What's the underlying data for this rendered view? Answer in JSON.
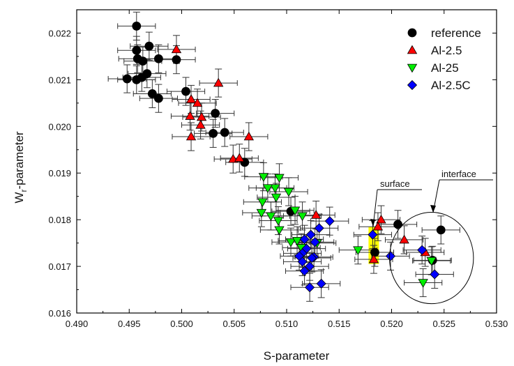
{
  "chart_data": {
    "type": "scatter",
    "xlabel": "S-parameter",
    "ylabel_main": "W",
    "ylabel_sub": "r",
    "ylabel_rest": "-parameter",
    "xlim": [
      0.49,
      0.53
    ],
    "ylim": [
      0.016,
      0.0225
    ],
    "xticks": [
      0.49,
      0.495,
      0.5,
      0.505,
      0.51,
      0.515,
      0.52,
      0.525,
      0.53
    ],
    "xtick_labels": [
      "0.490",
      "0.495",
      "0.500",
      "0.505",
      "0.510",
      "0.515",
      "0.520",
      "0.525",
      "0.530"
    ],
    "yticks": [
      0.016,
      0.017,
      0.018,
      0.019,
      0.02,
      0.021,
      0.022
    ],
    "ytick_labels": [
      "0.016",
      "0.017",
      "0.018",
      "0.019",
      "0.020",
      "0.021",
      "0.022"
    ],
    "x_error": 0.0018,
    "y_error": 0.0003,
    "annotations": {
      "surface": "surface",
      "interface": "interface"
    },
    "highlight_region": {
      "x": [
        0.5178,
        0.5188
      ],
      "y": [
        0.01705,
        0.01785
      ],
      "color": "#ffff00"
    },
    "interface_ellipse": {
      "cx": 0.5238,
      "cy": 0.01718,
      "rx": 0.004,
      "ry": 0.00098
    },
    "series": [
      {
        "name": "reference",
        "marker": "circle",
        "color": "#000000",
        "points": [
          [
            0.4957,
            0.02215
          ],
          [
            0.4957,
            0.02163
          ],
          [
            0.4969,
            0.02172
          ],
          [
            0.4958,
            0.02145
          ],
          [
            0.4963,
            0.0214
          ],
          [
            0.4978,
            0.02145
          ],
          [
            0.4995,
            0.02143
          ],
          [
            0.4967,
            0.02113
          ],
          [
            0.4962,
            0.02105
          ],
          [
            0.4948,
            0.02102
          ],
          [
            0.4957,
            0.021
          ],
          [
            0.4972,
            0.0207
          ],
          [
            0.4978,
            0.0206
          ],
          [
            0.5004,
            0.02075
          ],
          [
            0.5032,
            0.02028
          ],
          [
            0.503,
            0.01985
          ],
          [
            0.5041,
            0.01987
          ],
          [
            0.506,
            0.01923
          ],
          [
            0.5104,
            0.01818
          ],
          [
            0.5184,
            0.0173
          ],
          [
            0.5206,
            0.0179
          ],
          [
            0.5247,
            0.01778
          ],
          [
            0.5239,
            0.01713
          ]
        ]
      },
      {
        "name": "Al-2.5",
        "marker": "triangle-up",
        "color": "#ff0000",
        "points": [
          [
            0.4995,
            0.02165
          ],
          [
            0.5035,
            0.02093
          ],
          [
            0.5009,
            0.02058
          ],
          [
            0.5015,
            0.0205
          ],
          [
            0.5008,
            0.02022
          ],
          [
            0.5019,
            0.0202
          ],
          [
            0.5018,
            0.02003
          ],
          [
            0.5009,
            0.01978
          ],
          [
            0.5064,
            0.01978
          ],
          [
            0.5049,
            0.0193
          ],
          [
            0.5055,
            0.01932
          ],
          [
            0.5128,
            0.0181
          ],
          [
            0.519,
            0.018
          ],
          [
            0.5187,
            0.01785
          ],
          [
            0.5183,
            0.01715
          ],
          [
            0.5212,
            0.01757
          ],
          [
            0.5232,
            0.0173
          ]
        ]
      },
      {
        "name": "Al-25",
        "marker": "triangle-down",
        "color": "#00ee00",
        "points": [
          [
            0.5078,
            0.01892
          ],
          [
            0.5093,
            0.0189
          ],
          [
            0.5089,
            0.01868
          ],
          [
            0.5082,
            0.01868
          ],
          [
            0.5102,
            0.0186
          ],
          [
            0.509,
            0.01848
          ],
          [
            0.5077,
            0.01838
          ],
          [
            0.5076,
            0.01815
          ],
          [
            0.5085,
            0.01808
          ],
          [
            0.5092,
            0.01798
          ],
          [
            0.5108,
            0.0182
          ],
          [
            0.5115,
            0.01808
          ],
          [
            0.5093,
            0.01778
          ],
          [
            0.5104,
            0.01752
          ],
          [
            0.511,
            0.01755
          ],
          [
            0.5114,
            0.0174
          ],
          [
            0.5129,
            0.0175
          ],
          [
            0.5168,
            0.01735
          ],
          [
            0.523,
            0.01665
          ],
          [
            0.5238,
            0.01712
          ]
        ]
      },
      {
        "name": "Al-2.5C",
        "marker": "diamond",
        "color": "#0000ff",
        "points": [
          [
            0.5141,
            0.01797
          ],
          [
            0.5131,
            0.01782
          ],
          [
            0.5123,
            0.01768
          ],
          [
            0.5117,
            0.01758
          ],
          [
            0.5127,
            0.01752
          ],
          [
            0.5119,
            0.01738
          ],
          [
            0.5115,
            0.01728
          ],
          [
            0.5112,
            0.01722
          ],
          [
            0.5126,
            0.0172
          ],
          [
            0.5115,
            0.0171
          ],
          [
            0.5122,
            0.017
          ],
          [
            0.5117,
            0.0169
          ],
          [
            0.5133,
            0.01663
          ],
          [
            0.5122,
            0.01655
          ],
          [
            0.5182,
            0.01768
          ],
          [
            0.5199,
            0.01722
          ],
          [
            0.5229,
            0.01735
          ],
          [
            0.5241,
            0.01683
          ],
          [
            0.5124,
            0.01718
          ]
        ]
      }
    ]
  }
}
